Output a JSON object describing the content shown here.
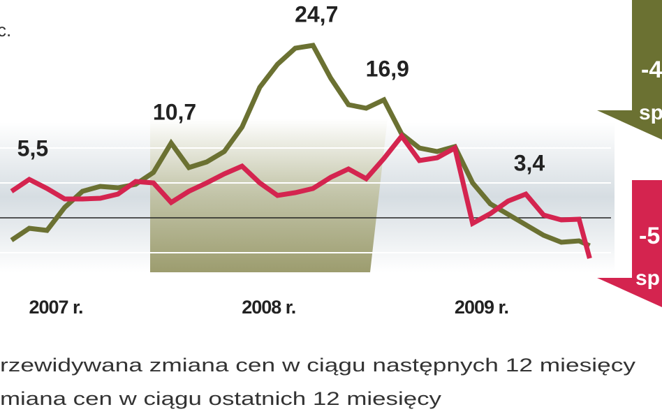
{
  "chart_data": {
    "type": "line",
    "x": [
      4,
      5,
      6,
      7,
      8,
      9,
      10,
      11,
      12,
      13,
      14,
      15,
      16,
      17,
      18,
      19,
      20,
      21,
      22,
      23,
      24,
      25,
      26,
      27,
      28,
      29,
      30,
      31,
      32,
      33,
      34,
      35,
      36,
      36.6
    ],
    "xlim": [
      3.35,
      40.68
    ],
    "xticks": [
      {
        "value": 6.5,
        "label": "2007 r."
      },
      {
        "value": 18.5,
        "label": "2008 r."
      },
      {
        "value": 30.5,
        "label": "2009 r."
      }
    ],
    "ylim": [
      -28.1,
      31.2
    ],
    "yticks": [
      -5,
      0,
      5,
      10
    ],
    "grid": true,
    "series": [
      {
        "name": "rzewidywana zmiana cen w ciągu następnych 12 miesięcy",
        "color": "#6b7132",
        "values": [
          -3.2,
          -1.5,
          -1.8,
          1.5,
          3.8,
          4.5,
          4.3,
          4.8,
          6.5,
          10.7,
          7.2,
          8.0,
          9.5,
          13,
          18.7,
          22,
          24.3,
          24.7,
          20,
          16.2,
          15.7,
          16.9,
          12,
          10,
          9.5,
          10.2,
          5,
          2,
          0.5,
          -1,
          -2.5,
          -3.5,
          -3.3,
          -4
        ],
        "value_labels": [
          null,
          null,
          null,
          null,
          null,
          null,
          null,
          null,
          null,
          "10,7",
          null,
          null,
          null,
          null,
          null,
          null,
          null,
          "24,7",
          null,
          null,
          null,
          "16,9",
          null,
          null,
          null,
          null,
          null,
          null,
          null,
          null,
          null,
          null,
          null,
          null
        ]
      },
      {
        "name": "miana cen w ciągu ostatnich 12 miesięcy",
        "color": "#d4244f",
        "values": [
          3.8,
          5.5,
          4.2,
          2.7,
          2.7,
          2.8,
          3.4,
          5.2,
          5.0,
          2.2,
          3.8,
          5.0,
          6.3,
          7.4,
          5.0,
          3.2,
          3.6,
          4.2,
          5.8,
          7.0,
          5.6,
          8.5,
          11.7,
          8.2,
          8.6,
          10.0,
          -0.8,
          0.6,
          2.4,
          3.4,
          0.4,
          -0.3,
          -0.2,
          -5.8
        ],
        "value_labels": [
          null,
          "5,5",
          null,
          null,
          null,
          null,
          null,
          null,
          null,
          null,
          null,
          null,
          null,
          null,
          null,
          null,
          null,
          null,
          null,
          null,
          null,
          null,
          null,
          null,
          null,
          null,
          null,
          null,
          null,
          "3,4",
          null,
          null,
          null,
          null
        ]
      }
    ],
    "annotations": [
      "c.",
      "-4",
      "sp",
      "-5",
      "sp"
    ]
  }
}
